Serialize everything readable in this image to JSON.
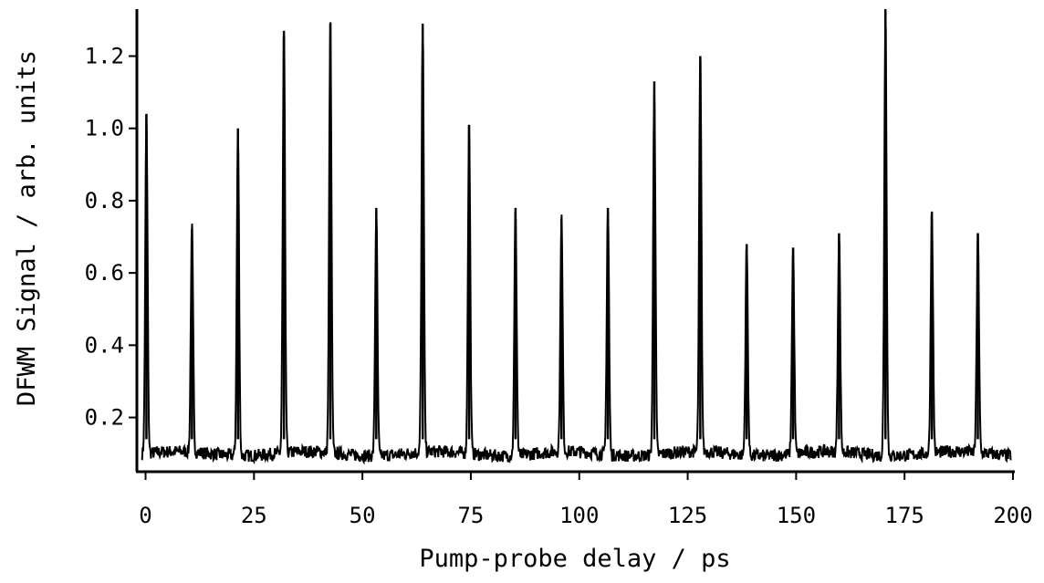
{
  "chart_data": {
    "type": "line",
    "xlabel": "Pump-probe delay / ps",
    "ylabel": "DFWM Signal  / arb. units",
    "xlim": [
      -2,
      200
    ],
    "ylim": [
      0.05,
      1.33
    ],
    "xticks": [
      0,
      25,
      50,
      75,
      100,
      125,
      150,
      175,
      200
    ],
    "yticks": [
      0.2,
      0.4,
      0.6,
      0.8,
      1.0,
      1.2
    ],
    "ytick_labels": [
      "0.2",
      "0.4",
      "0.6",
      "0.8",
      "1.0",
      "1.2"
    ],
    "grid": false,
    "baseline": 0.1,
    "peak_width_ps": 0.55,
    "peaks": [
      {
        "x": 0.2,
        "y": 1.04
      },
      {
        "x": 10.7,
        "y": 0.72
      },
      {
        "x": 21.3,
        "y": 1.0
      },
      {
        "x": 31.9,
        "y": 1.27
      },
      {
        "x": 42.6,
        "y": 1.29
      },
      {
        "x": 53.2,
        "y": 0.78
      },
      {
        "x": 63.9,
        "y": 1.29
      },
      {
        "x": 74.6,
        "y": 1.01
      },
      {
        "x": 85.3,
        "y": 0.78
      },
      {
        "x": 95.9,
        "y": 0.75
      },
      {
        "x": 106.6,
        "y": 0.78
      },
      {
        "x": 117.3,
        "y": 1.13
      },
      {
        "x": 127.9,
        "y": 1.2
      },
      {
        "x": 138.6,
        "y": 0.68
      },
      {
        "x": 149.3,
        "y": 0.67
      },
      {
        "x": 159.9,
        "y": 0.71
      },
      {
        "x": 170.6,
        "y": 1.33
      },
      {
        "x": 181.3,
        "y": 0.77
      },
      {
        "x": 191.9,
        "y": 0.71
      }
    ],
    "colors": {
      "line": "#000000",
      "axis": "#000000",
      "background": "#ffffff"
    }
  }
}
